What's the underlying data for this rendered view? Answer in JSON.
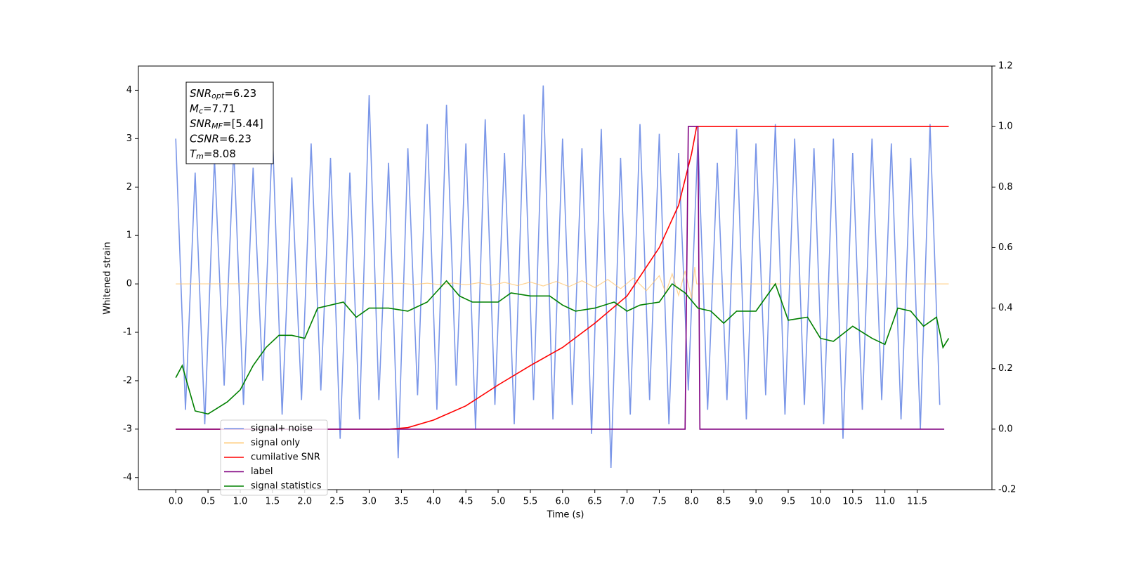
{
  "chart_data": {
    "type": "line",
    "xlabel": "Time (s)",
    "ylabel": "Whitened strain",
    "xlim": [
      -0.58,
      12.66
    ],
    "ylim": [
      -4.25,
      4.5
    ],
    "y2lim": [
      -0.2,
      1.2
    ],
    "xticks": [
      {
        "value": 0,
        "label": "0.0"
      },
      {
        "value": 0.5,
        "label": "0.5"
      },
      {
        "value": 1,
        "label": "1.0"
      },
      {
        "value": 1.5,
        "label": "1.5"
      },
      {
        "value": 2,
        "label": "2.0"
      },
      {
        "value": 2.5,
        "label": "2.5"
      },
      {
        "value": 3,
        "label": "3.0"
      },
      {
        "value": 3.5,
        "label": "3.5"
      },
      {
        "value": 4,
        "label": "4.0"
      },
      {
        "value": 4.5,
        "label": "4.5"
      },
      {
        "value": 5,
        "label": "5.0"
      },
      {
        "value": 5.5,
        "label": "5.5"
      },
      {
        "value": 6,
        "label": "6.0"
      },
      {
        "value": 6.5,
        "label": "6.5"
      },
      {
        "value": 7,
        "label": "7.0"
      },
      {
        "value": 7.5,
        "label": "7.5"
      },
      {
        "value": 8,
        "label": "8.0"
      },
      {
        "value": 8.5,
        "label": "8.5"
      },
      {
        "value": 9,
        "label": "9.0"
      },
      {
        "value": 9.5,
        "label": "9.5"
      },
      {
        "value": 10,
        "label": "10.0"
      },
      {
        "value": 10.5,
        "label": "10.5"
      },
      {
        "value": 11,
        "label": "11.0"
      },
      {
        "value": 11.5,
        "label": "11.5"
      }
    ],
    "yticks": [
      -4,
      -3,
      -2,
      -1,
      0,
      1,
      2,
      3,
      4
    ],
    "y2ticks": [
      -0.2,
      {
        "value": 0,
        "label": "0.0"
      },
      0.2,
      0.4,
      0.6,
      0.8,
      {
        "value": 1,
        "label": "1.0"
      },
      1.2
    ],
    "legend": "lower left",
    "annotation": [
      {
        "name": "SNR",
        "sub": "opt",
        "text": "=6.23"
      },
      {
        "name": "M",
        "sub": "c",
        "text": "=7.71"
      },
      {
        "name": "SNR",
        "sub": "MF",
        "text": "=[5.44]"
      },
      {
        "name": "CSNR",
        "sub": "",
        "text": "=6.23"
      },
      {
        "name": "T",
        "sub": "m",
        "text": "=8.08"
      }
    ],
    "series": [
      {
        "name": "signal+ noise",
        "color": "#7a96e8",
        "axis": "y",
        "x": [
          0,
          0.15,
          0.3,
          0.45,
          0.6,
          0.75,
          0.9,
          1.05,
          1.2,
          1.35,
          1.5,
          1.65,
          1.8,
          1.95,
          2.1,
          2.25,
          2.4,
          2.55,
          2.7,
          2.85,
          3,
          3.15,
          3.3,
          3.45,
          3.6,
          3.75,
          3.9,
          4.05,
          4.2,
          4.35,
          4.5,
          4.65,
          4.8,
          4.95,
          5.1,
          5.25,
          5.4,
          5.55,
          5.7,
          5.85,
          6,
          6.15,
          6.3,
          6.45,
          6.6,
          6.75,
          6.9,
          7.05,
          7.2,
          7.35,
          7.5,
          7.65,
          7.8,
          7.95,
          8.1,
          8.25,
          8.4,
          8.55,
          8.7,
          8.85,
          9,
          9.15,
          9.3,
          9.45,
          9.6,
          9.75,
          9.9,
          10.05,
          10.2,
          10.35,
          10.5,
          10.65,
          10.8,
          10.95,
          11.1,
          11.25,
          11.4,
          11.55,
          11.7,
          11.85
        ],
        "values": [
          3.0,
          -2.6,
          2.3,
          -2.9,
          2.6,
          -2.1,
          2.8,
          -2.5,
          2.4,
          -2.0,
          3.1,
          -2.7,
          2.2,
          -2.4,
          2.9,
          -2.2,
          2.6,
          -3.2,
          2.3,
          -2.8,
          3.9,
          -2.4,
          2.5,
          -3.6,
          2.8,
          -2.3,
          3.3,
          -2.6,
          3.7,
          -2.1,
          2.9,
          -3.0,
          3.4,
          -2.5,
          2.7,
          -2.9,
          3.5,
          -2.4,
          4.1,
          -2.8,
          3.0,
          -2.5,
          2.8,
          -3.1,
          3.2,
          -3.8,
          2.6,
          -2.7,
          3.3,
          -2.4,
          3.1,
          -2.9,
          2.7,
          -2.2,
          3.0,
          -2.6,
          2.5,
          -2.4,
          3.2,
          -2.8,
          2.9,
          -2.3,
          3.3,
          -2.7,
          3.0,
          -2.5,
          2.8,
          -2.9,
          3.0,
          -3.2,
          2.7,
          -2.6,
          3.0,
          -2.4,
          2.9,
          -2.8,
          2.6,
          -3.0,
          3.3,
          -2.5
        ]
      },
      {
        "name": "signal only",
        "color": "#ffc266",
        "axis": "y",
        "x": [
          0,
          3.5,
          3.7,
          3.9,
          4.1,
          4.3,
          4.5,
          4.7,
          4.9,
          5.1,
          5.3,
          5.5,
          5.7,
          5.9,
          6.1,
          6.3,
          6.5,
          6.7,
          6.9,
          7.1,
          7.3,
          7.5,
          7.6,
          7.7,
          7.8,
          7.9,
          8.0,
          8.05,
          8.08,
          11.99
        ],
        "values": [
          0,
          0.01,
          -0.012,
          0.014,
          -0.016,
          0.018,
          -0.02,
          0.023,
          -0.026,
          0.03,
          -0.034,
          0.038,
          -0.043,
          0.05,
          -0.057,
          0.065,
          -0.075,
          0.09,
          -0.1,
          0.12,
          -0.14,
          0.17,
          -0.19,
          0.21,
          -0.24,
          0.27,
          -0.3,
          0.35,
          0,
          0
        ]
      },
      {
        "name": "cumilative SNR",
        "color": "#ff0000",
        "axis": "y2",
        "x": [
          0,
          3.3,
          3.6,
          4.0,
          4.5,
          5.0,
          5.5,
          6.0,
          6.5,
          7.0,
          7.5,
          7.8,
          8.0,
          8.08,
          11.99
        ],
        "values": [
          0,
          0,
          0.005,
          0.03,
          0.077,
          0.146,
          0.21,
          0.27,
          0.35,
          0.44,
          0.6,
          0.74,
          0.91,
          1,
          1
        ]
      },
      {
        "name": "label",
        "color": "#800080",
        "axis": "y2",
        "x": [
          0,
          7.9,
          7.95,
          8.1,
          8.13,
          11.92
        ],
        "values": [
          0,
          0,
          1,
          1,
          0,
          0
        ]
      },
      {
        "name": "signal statistics",
        "color": "#008000",
        "axis": "y2",
        "x": [
          0,
          0.1,
          0.3,
          0.5,
          0.8,
          1.0,
          1.2,
          1.4,
          1.6,
          1.8,
          2.0,
          2.2,
          2.4,
          2.6,
          2.8,
          3.0,
          3.3,
          3.6,
          3.9,
          4.2,
          4.4,
          4.6,
          5.0,
          5.2,
          5.5,
          5.8,
          6.0,
          6.2,
          6.5,
          6.8,
          7.0,
          7.2,
          7.5,
          7.7,
          7.9,
          8.1,
          8.3,
          8.5,
          8.7,
          9.0,
          9.3,
          9.5,
          9.8,
          10.0,
          10.2,
          10.5,
          10.8,
          11.0,
          11.2,
          11.4,
          11.6,
          11.8,
          11.9,
          11.99
        ],
        "values": [
          0.17,
          0.21,
          0.06,
          0.05,
          0.09,
          0.13,
          0.21,
          0.27,
          0.31,
          0.31,
          0.3,
          0.4,
          0.41,
          0.42,
          0.37,
          0.4,
          0.4,
          0.39,
          0.42,
          0.49,
          0.44,
          0.42,
          0.42,
          0.45,
          0.44,
          0.44,
          0.41,
          0.39,
          0.4,
          0.42,
          0.39,
          0.41,
          0.42,
          0.48,
          0.45,
          0.4,
          0.39,
          0.35,
          0.39,
          0.39,
          0.48,
          0.36,
          0.37,
          0.3,
          0.29,
          0.34,
          0.3,
          0.28,
          0.4,
          0.39,
          0.34,
          0.37,
          0.27,
          0.3
        ]
      }
    ]
  }
}
